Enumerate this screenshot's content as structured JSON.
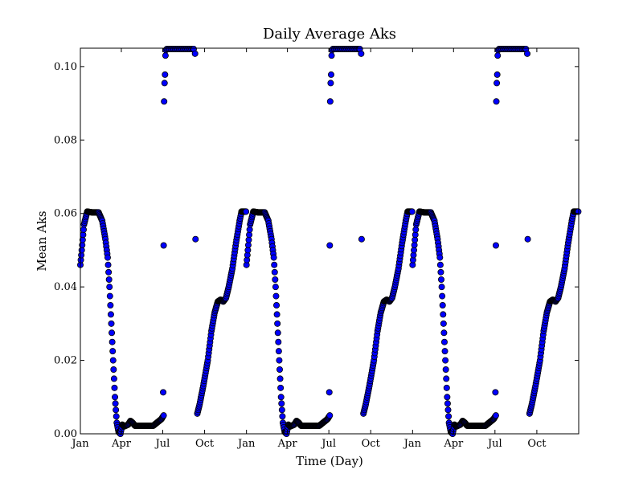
{
  "chart_data": {
    "type": "scatter",
    "title": "Daily Average Aks",
    "xlabel": "Time (Day)",
    "ylabel": "Mean Aks",
    "xlim": [
      0,
      1095
    ],
    "ylim": [
      0,
      0.105
    ],
    "grid": false,
    "legend": null,
    "marker_color": "#0000ff",
    "x_ticks": [
      {
        "value": 0,
        "label": "Jan"
      },
      {
        "value": 90,
        "label": "Apr"
      },
      {
        "value": 181,
        "label": "Jul"
      },
      {
        "value": 273,
        "label": "Oct"
      },
      {
        "value": 365,
        "label": "Jan"
      },
      {
        "value": 455,
        "label": "Apr"
      },
      {
        "value": 546,
        "label": "Jul"
      },
      {
        "value": 638,
        "label": "Oct"
      },
      {
        "value": 730,
        "label": "Jan"
      },
      {
        "value": 820,
        "label": "Apr"
      },
      {
        "value": 911,
        "label": "Jul"
      },
      {
        "value": 1003,
        "label": "Oct"
      }
    ],
    "y_ticks": [
      {
        "value": 0.0,
        "label": "0.00"
      },
      {
        "value": 0.02,
        "label": "0.02"
      },
      {
        "value": 0.04,
        "label": "0.04"
      },
      {
        "value": 0.06,
        "label": "0.06"
      },
      {
        "value": 0.08,
        "label": "0.08"
      },
      {
        "value": 0.1,
        "label": "0.10"
      }
    ],
    "curve_knots_by_day_of_year": [
      [
        0,
        0.046
      ],
      [
        3,
        0.05
      ],
      [
        8,
        0.057
      ],
      [
        15,
        0.0605
      ],
      [
        25,
        0.0603
      ],
      [
        40,
        0.0603
      ],
      [
        48,
        0.058
      ],
      [
        55,
        0.053
      ],
      [
        60,
        0.048
      ],
      [
        64,
        0.04
      ],
      [
        68,
        0.03
      ],
      [
        72,
        0.02
      ],
      [
        76,
        0.01
      ],
      [
        80,
        0.003
      ],
      [
        84,
        0.0005
      ],
      [
        88,
        0.0
      ],
      [
        92,
        0.0025
      ],
      [
        96,
        0.002
      ],
      [
        105,
        0.0025
      ],
      [
        110,
        0.0035
      ],
      [
        115,
        0.003
      ],
      [
        120,
        0.0022
      ],
      [
        160,
        0.0022
      ],
      [
        168,
        0.003
      ],
      [
        178,
        0.004
      ],
      [
        183,
        0.005
      ],
      [
        184,
        null
      ],
      [
        255,
        null
      ],
      [
        256,
        0.005
      ],
      [
        262,
        0.008
      ],
      [
        270,
        0.013
      ],
      [
        280,
        0.02
      ],
      [
        288,
        0.028
      ],
      [
        295,
        0.033
      ],
      [
        302,
        0.036
      ],
      [
        308,
        0.0365
      ],
      [
        314,
        0.036
      ],
      [
        320,
        0.037
      ],
      [
        326,
        0.04
      ],
      [
        334,
        0.045
      ],
      [
        342,
        0.052
      ],
      [
        350,
        0.058
      ],
      [
        354,
        0.0605
      ],
      [
        360,
        0.0605
      ],
      [
        365,
        0.0605
      ]
    ],
    "curve_step_days": 1,
    "years": 3,
    "outlier_points_by_day_of_year": [
      [
        182,
        0.0113
      ],
      [
        183,
        0.0513
      ],
      [
        184,
        0.0905
      ],
      [
        185,
        0.0955
      ],
      [
        186,
        0.0978
      ],
      [
        187,
        0.103
      ],
      [
        188,
        0.1045
      ],
      [
        190,
        0.1048
      ],
      [
        193,
        0.1048
      ],
      [
        196,
        0.1048
      ],
      [
        199,
        0.1048
      ],
      [
        202,
        0.1048
      ],
      [
        205,
        0.1048
      ],
      [
        208,
        0.1048
      ],
      [
        211,
        0.1048
      ],
      [
        214,
        0.1048
      ],
      [
        217,
        0.1048
      ],
      [
        220,
        0.1048
      ],
      [
        223,
        0.1048
      ],
      [
        226,
        0.1048
      ],
      [
        229,
        0.1048
      ],
      [
        232,
        0.1048
      ],
      [
        235,
        0.1048
      ],
      [
        238,
        0.1048
      ],
      [
        241,
        0.1048
      ],
      [
        244,
        0.1048
      ],
      [
        247,
        0.1048
      ],
      [
        249,
        0.1048
      ],
      [
        252,
        0.1035
      ],
      [
        253,
        0.053
      ]
    ]
  }
}
